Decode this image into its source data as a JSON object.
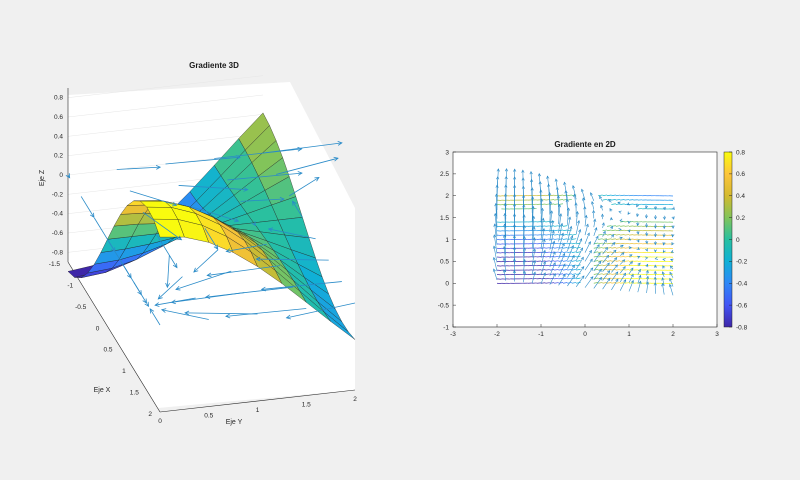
{
  "colors": {
    "figure_bg": "#f0f0f0",
    "axes_bg": "#ffffff",
    "arrow": "#2a8bc8",
    "colormap": [
      "#3e26a8",
      "#4254f5",
      "#2e87f7",
      "#10b0d6",
      "#27c0a1",
      "#82c45a",
      "#d4ba2f",
      "#fdc53a",
      "#f9fb0e"
    ]
  },
  "chart_data": [
    {
      "type": "surface",
      "title": "Gradiente 3D",
      "xlabel": "Eje X",
      "ylabel": "Eje Y",
      "zlabel": "Eje Z",
      "xlim": [
        -1.5,
        2
      ],
      "ylim": [
        0,
        2
      ],
      "zlim": [
        -0.9,
        0.9
      ],
      "x_ticks": [
        "-1.5",
        "-1",
        "-0.5",
        "0",
        "0.5",
        "1",
        "1.5",
        "2"
      ],
      "y_ticks": [
        "0",
        "0.5",
        "1",
        "1.5",
        "2"
      ],
      "z_ticks": [
        "-0.8",
        "-0.6",
        "-0.4",
        "-0.2",
        "0",
        "0.2",
        "0.4",
        "0.6",
        "0.8"
      ],
      "function": "z = sin(x) * cos(y)",
      "grid_resolution": 0.25,
      "quiver": true
    },
    {
      "type": "quiver",
      "title": "Gradiente en 2D",
      "xlim": [
        -3,
        3
      ],
      "ylim": [
        -1,
        3
      ],
      "x_ticks": [
        "-3",
        "-2",
        "-1",
        "0",
        "1",
        "2",
        "3"
      ],
      "y_ticks": [
        "-1",
        "-0.5",
        "0",
        "0.5",
        "1",
        "1.5",
        "2",
        "2.5",
        "3"
      ],
      "region_x": [
        -2,
        2
      ],
      "region_y": [
        0,
        2
      ],
      "contour": true,
      "colorbar": {
        "range": [
          -0.8,
          0.8
        ],
        "ticks": [
          "-0.8",
          "-0.6",
          "-0.4",
          "-0.2",
          "0",
          "0.2",
          "0.4",
          "0.6",
          "0.8"
        ]
      }
    }
  ]
}
